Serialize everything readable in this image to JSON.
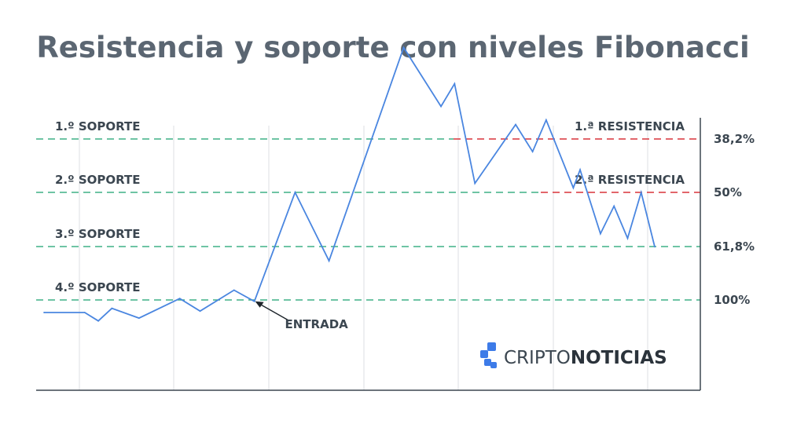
{
  "chart_data": {
    "type": "line",
    "title": "Resistencia y soporte con niveles Fibonacci",
    "xlabel": "",
    "ylabel": "",
    "grid": true,
    "fib_levels": [
      {
        "tick": "38,2%",
        "value": 38.2,
        "support_label": "1.º SOPORTE",
        "resistance_label": "1.ª RESISTENCIA"
      },
      {
        "tick": "50%",
        "value": 50,
        "support_label": "2.º SOPORTE",
        "resistance_label": "2.ª RESISTENCIA"
      },
      {
        "tick": "61,8%",
        "value": 61.8,
        "support_label": "3.º SOPORTE",
        "resistance_label": ""
      },
      {
        "tick": "100%",
        "value": 100,
        "support_label": "4.º SOPORTE",
        "resistance_label": ""
      }
    ],
    "series": [
      {
        "values": [
          [
            0,
            109
          ],
          [
            6,
            109
          ],
          [
            8,
            115
          ],
          [
            10,
            106
          ],
          [
            14,
            113
          ],
          [
            20,
            99
          ],
          [
            23,
            108
          ],
          [
            28,
            93
          ],
          [
            31,
            101
          ],
          [
            37,
            50
          ],
          [
            42,
            72
          ],
          [
            53,
            18
          ],
          [
            58.5,
            31
          ],
          [
            60.5,
            26
          ],
          [
            63.5,
            48
          ],
          [
            69.5,
            35
          ],
          [
            72,
            41
          ],
          [
            74,
            34
          ],
          [
            78,
            49
          ],
          [
            79,
            45
          ],
          [
            82,
            59
          ],
          [
            84,
            53
          ],
          [
            86,
            60
          ],
          [
            88,
            50
          ],
          [
            90,
            62
          ]
        ]
      }
    ],
    "annotations": [
      {
        "text": "ENTRADA",
        "target": [
          31,
          101
        ]
      }
    ]
  },
  "colors": {
    "title": "#5b6672",
    "line": "#4a86e0",
    "support_line": "#3fb086",
    "resistance_line": "#d9333a",
    "axis": "#3b4650",
    "grid": "#dcdfe3",
    "brand_icon": "#3d7be8"
  },
  "brand": {
    "part1": "CRIPTO",
    "part2": "NOTICIAS",
    "icon": "cubes-logo-icon"
  }
}
